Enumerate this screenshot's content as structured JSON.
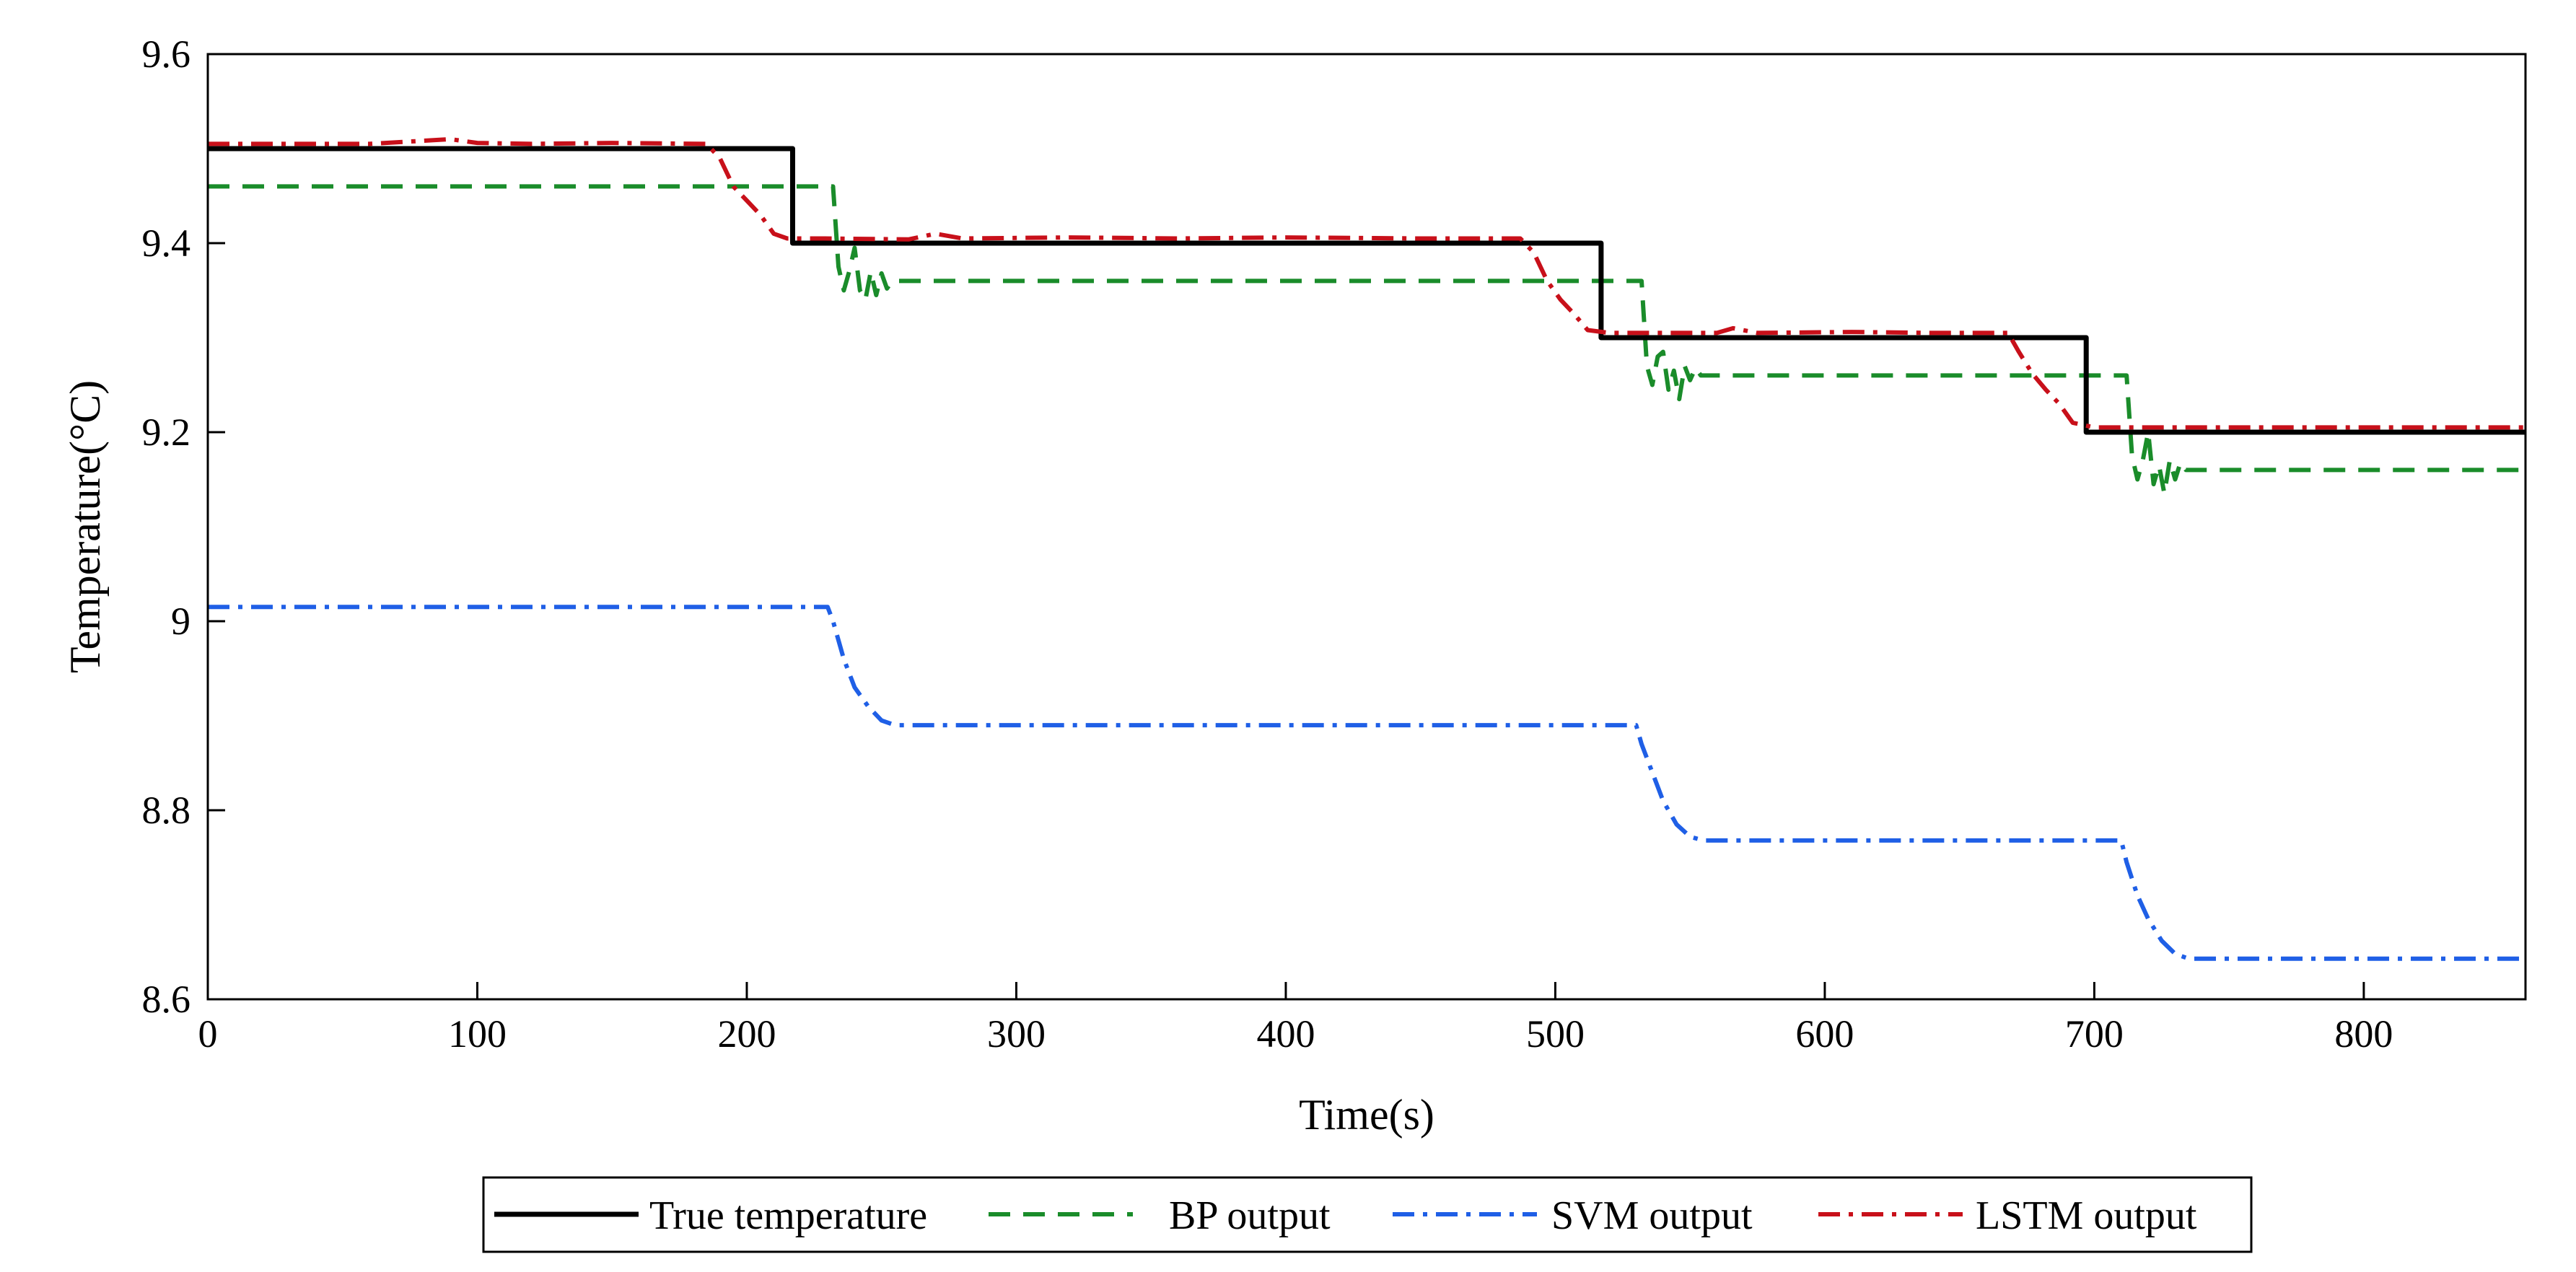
{
  "chart_data": {
    "type": "line",
    "title": "",
    "xlabel": "Time(s)",
    "ylabel": "Temperature(°C)",
    "xlim": [
      0,
      860
    ],
    "ylim": [
      8.6,
      9.6
    ],
    "xticks": [
      0,
      100,
      200,
      300,
      400,
      500,
      600,
      700,
      800
    ],
    "yticks": [
      8.6,
      8.8,
      9,
      9.2,
      9.4,
      9.6
    ],
    "xtick_labels": [
      "0",
      "100",
      "200",
      "300",
      "400",
      "500",
      "600",
      "700",
      "800"
    ],
    "ytick_labels": [
      "8.6",
      "8.8",
      "9",
      "9.2",
      "9.4",
      "9.6"
    ],
    "grid": false,
    "legend_position": "bottom-outside",
    "series": [
      {
        "name": "True temperature",
        "color": "#000000",
        "style": "solid",
        "x": [
          0,
          217,
          217,
          517,
          517,
          697,
          697,
          860
        ],
        "y": [
          9.5,
          9.5,
          9.4,
          9.4,
          9.3,
          9.3,
          9.2,
          9.2
        ]
      },
      {
        "name": "BP output",
        "color": "#1a8c2a",
        "style": "dashed",
        "x": [
          0,
          232,
          234,
          236,
          238,
          240,
          242,
          244,
          246,
          248,
          250,
          252,
          254,
          532,
          534,
          536,
          538,
          540,
          542,
          544,
          546,
          548,
          550,
          552,
          554,
          712,
          714,
          716,
          718,
          720,
          722,
          724,
          726,
          728,
          730,
          732,
          734,
          860
        ],
        "y": [
          9.46,
          9.46,
          9.375,
          9.35,
          9.37,
          9.395,
          9.35,
          9.34,
          9.37,
          9.345,
          9.368,
          9.352,
          9.36,
          9.36,
          9.27,
          9.25,
          9.28,
          9.285,
          9.245,
          9.265,
          9.235,
          9.27,
          9.255,
          9.268,
          9.26,
          9.26,
          9.175,
          9.15,
          9.17,
          9.2,
          9.145,
          9.165,
          9.135,
          9.17,
          9.15,
          9.168,
          9.16,
          9.16
        ]
      },
      {
        "name": "SVM output",
        "color": "#1f5fe6",
        "style": "dashdot",
        "x": [
          0,
          230,
          232,
          236,
          240,
          245,
          250,
          255,
          530,
          532,
          536,
          540,
          545,
          550,
          555,
          710,
          712,
          716,
          720,
          725,
          730,
          735,
          860
        ],
        "y": [
          9.015,
          9.015,
          9.0,
          8.96,
          8.93,
          8.91,
          8.895,
          8.89,
          8.89,
          8.87,
          8.84,
          8.81,
          8.785,
          8.772,
          8.768,
          8.768,
          8.745,
          8.71,
          8.685,
          8.662,
          8.648,
          8.643,
          8.643
        ]
      },
      {
        "name": "LSTM output",
        "color": "#c8101a",
        "style": "dashdot",
        "x": [
          0,
          60,
          90,
          100,
          120,
          150,
          185,
          190,
          195,
          200,
          205,
          210,
          215,
          220,
          228,
          260,
          270,
          280,
          320,
          360,
          400,
          450,
          487,
          492,
          497,
          502,
          507,
          512,
          520,
          560,
          566,
          575,
          610,
          640,
          668,
          672,
          677,
          682,
          687,
          692,
          700,
          860
        ],
        "y": [
          9.505,
          9.505,
          9.51,
          9.506,
          9.505,
          9.506,
          9.505,
          9.49,
          9.46,
          9.445,
          9.43,
          9.41,
          9.405,
          9.405,
          9.405,
          9.404,
          9.41,
          9.405,
          9.406,
          9.405,
          9.406,
          9.405,
          9.405,
          9.39,
          9.36,
          9.34,
          9.325,
          9.308,
          9.305,
          9.305,
          9.31,
          9.305,
          9.306,
          9.305,
          9.305,
          9.285,
          9.262,
          9.245,
          9.23,
          9.21,
          9.205,
          9.205
        ]
      }
    ]
  }
}
